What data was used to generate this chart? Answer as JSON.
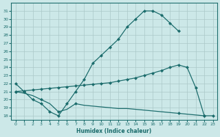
{
  "xlabel": "Humidex (Indice chaleur)",
  "bg_color": "#cce8e8",
  "line_color": "#1a6b6b",
  "grid_color": "#aac8c8",
  "line1_x": [
    0,
    1,
    2,
    3,
    4,
    5,
    6,
    7,
    8,
    9,
    10,
    11,
    12,
    13,
    14,
    15,
    16,
    17,
    18,
    19
  ],
  "line1_y": [
    22,
    21,
    20,
    19.5,
    18.5,
    18,
    19.5,
    21,
    22.5,
    24.5,
    25.5,
    26.5,
    27.5,
    29,
    30,
    31,
    31,
    30.5,
    29.5,
    28.5
  ],
  "line2_x": [
    0,
    1,
    2,
    3,
    4,
    5,
    6,
    7,
    8,
    9,
    10,
    11,
    12,
    13,
    14,
    15,
    16,
    17,
    18,
    19,
    20,
    21,
    22
  ],
  "line2_y": [
    21,
    21.1,
    21.2,
    21.3,
    21.4,
    21.5,
    21.6,
    21.7,
    21.8,
    21.9,
    22.0,
    22.1,
    22.3,
    22.5,
    22.7,
    23.0,
    23.3,
    23.6,
    24.0,
    24.3,
    24.0,
    21.5,
    18
  ],
  "line3_x": [
    0,
    1,
    2,
    3,
    4,
    5,
    6,
    7,
    8,
    9,
    10,
    11,
    12,
    13,
    14,
    15,
    16,
    17,
    18,
    19,
    20,
    21,
    22,
    23
  ],
  "line3_y": [
    21,
    20.8,
    20.5,
    20.0,
    19.5,
    18.5,
    18.8,
    19.5,
    19.3,
    19.2,
    19.1,
    19.0,
    18.9,
    18.9,
    18.8,
    18.7,
    18.6,
    18.5,
    18.4,
    18.3,
    18.2,
    18.1,
    18.0,
    18.0
  ],
  "xlim": [
    -0.5,
    23.5
  ],
  "ylim": [
    17.5,
    32
  ],
  "yticks": [
    18,
    19,
    20,
    21,
    22,
    23,
    24,
    25,
    26,
    27,
    28,
    29,
    30,
    31
  ],
  "xticks": [
    0,
    1,
    2,
    3,
    4,
    5,
    6,
    7,
    8,
    9,
    10,
    11,
    12,
    13,
    14,
    15,
    16,
    17,
    18,
    19,
    20,
    21,
    22,
    23
  ]
}
